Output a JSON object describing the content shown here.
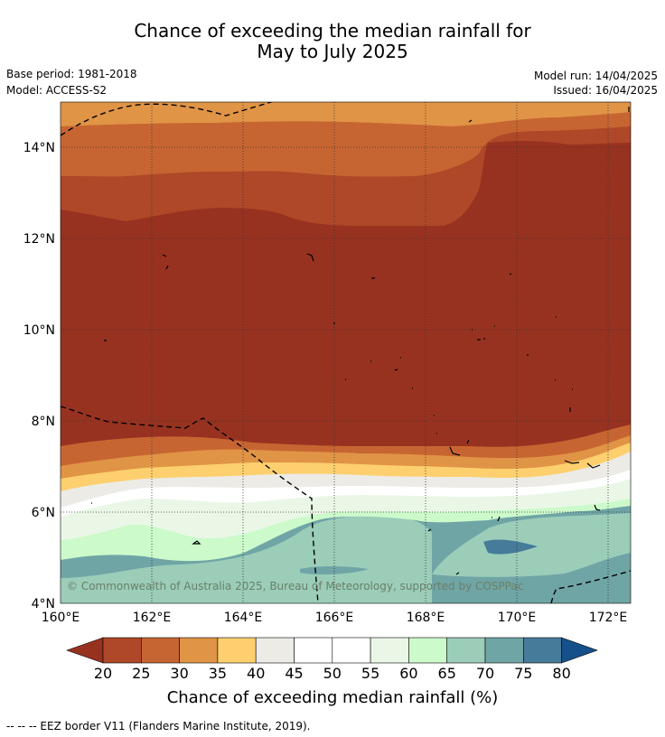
{
  "header": {
    "title_line1": "Chance of exceeding the median rainfall for",
    "title_line2": "May to July 2025",
    "base_period": "Base period: 1981-2018",
    "model": "Model: ACCESS-S2",
    "model_run": "Model run: 14/04/2025",
    "issued": "Issued: 16/04/2025"
  },
  "map": {
    "lon_labels": [
      "160°E",
      "162°E",
      "164°E",
      "166°E",
      "168°E",
      "170°E",
      "172°E"
    ],
    "lat_labels": [
      "14°N",
      "12°N",
      "10°N",
      "8°N",
      "6°N",
      "4°N"
    ],
    "copyright": "© Commonwealth of Australia 2025, Bureau of Meteorology, supported by COSPPac"
  },
  "colorbar": {
    "ticks": [
      "20",
      "25",
      "30",
      "35",
      "40",
      "45",
      "50",
      "55",
      "60",
      "65",
      "70",
      "75",
      "80"
    ],
    "label": "Chance of exceeding median rainfall (%)",
    "colors": {
      "below20": "#983220",
      "c20_25": "#ae4828",
      "c25_30": "#c76532",
      "c30_35": "#e09446",
      "c35_40": "#fdcf6e",
      "c40_45": "#ecebe6",
      "c45_50": "#ffffff",
      "c50_55": "#ffffff",
      "c55_60": "#eaf7e7",
      "c60_65": "#ccfacb",
      "c65_70": "#9bcdb9",
      "c70_75": "#70a5a6",
      "c75_80": "#467b9a",
      "above80": "#16508a"
    }
  },
  "footnote": "--  --  -- EEZ border V11 (Flanders Marine Institute, 2019)."
}
